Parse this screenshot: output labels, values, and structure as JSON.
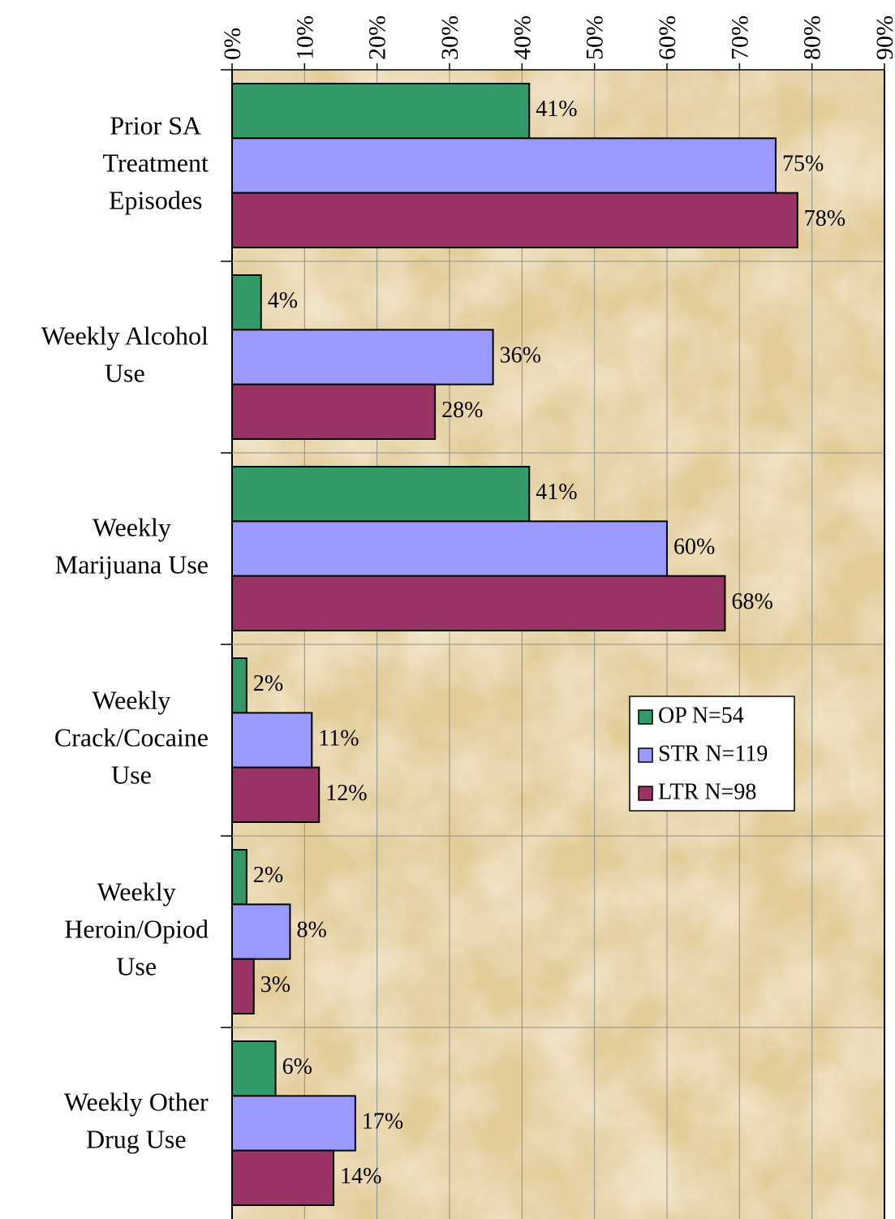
{
  "chart_data": {
    "type": "hbar",
    "categories": [
      [
        "Prior SA",
        "Treatment",
        "Episodes"
      ],
      [
        "Weekly Alcohol",
        "Use"
      ],
      [
        "Weekly",
        "Marijuana Use"
      ],
      [
        "Weekly",
        "Crack/Cocaine",
        "Use"
      ],
      [
        "Weekly",
        "Heroin/Opiod",
        "Use"
      ],
      [
        "Weekly Other",
        "Drug Use"
      ]
    ],
    "series": [
      {
        "name": "OP N=54",
        "color": "#339966",
        "values": [
          41,
          4,
          41,
          2,
          2,
          6
        ],
        "value_labels": [
          "41%",
          "4%",
          "41%",
          "2%",
          "2%",
          "6%"
        ]
      },
      {
        "name": "STR N=119",
        "color": "#9999ff",
        "values": [
          75,
          36,
          60,
          11,
          8,
          17
        ],
        "value_labels": [
          "75%",
          "36%",
          "60%",
          "11%",
          "8%",
          "17%"
        ]
      },
      {
        "name": "LTR N=98",
        "color": "#993366",
        "values": [
          78,
          28,
          68,
          12,
          3,
          14
        ],
        "value_labels": [
          "78%",
          "28%",
          "68%",
          "12%",
          "3%",
          "14%"
        ]
      }
    ],
    "xlim": [
      0,
      90
    ],
    "xticks": [
      {
        "value": 0,
        "label": "0%"
      },
      {
        "value": 10,
        "label": "10%"
      },
      {
        "value": 20,
        "label": "20%"
      },
      {
        "value": 30,
        "label": "30%"
      },
      {
        "value": 40,
        "label": "40%"
      },
      {
        "value": 50,
        "label": "50%"
      },
      {
        "value": 60,
        "label": "60%"
      },
      {
        "value": 70,
        "label": "70%"
      },
      {
        "value": 80,
        "label": "80%"
      },
      {
        "value": 90,
        "label": "90%"
      }
    ],
    "x_axis_position": "top",
    "grid": true,
    "legend": "right"
  }
}
